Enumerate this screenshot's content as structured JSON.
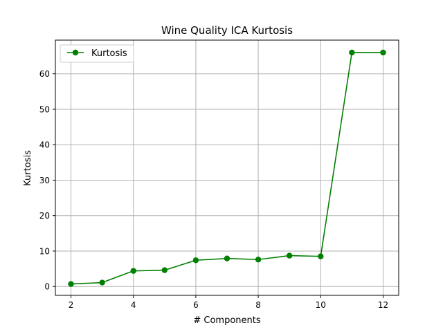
{
  "chart_data": {
    "type": "line",
    "title": "Wine Quality  ICA Kurtosis",
    "xlabel": "# Components",
    "ylabel": "Kurtosis",
    "x": [
      2,
      3,
      4,
      5,
      6,
      7,
      8,
      9,
      10,
      11,
      12
    ],
    "series": [
      {
        "name": "Kurtosis",
        "values": [
          0.7,
          1.1,
          4.4,
          4.6,
          7.4,
          7.9,
          7.6,
          8.7,
          8.5,
          66.0,
          66.0
        ],
        "color": "#008000",
        "marker": "circle"
      }
    ],
    "xlim": [
      1.5,
      12.5
    ],
    "ylim": [
      -2.5,
      69.5
    ],
    "xticks": [
      2,
      4,
      6,
      8,
      10,
      12
    ],
    "yticks": [
      0,
      10,
      20,
      30,
      40,
      50,
      60
    ],
    "grid": true,
    "legend_position": "top-left"
  }
}
